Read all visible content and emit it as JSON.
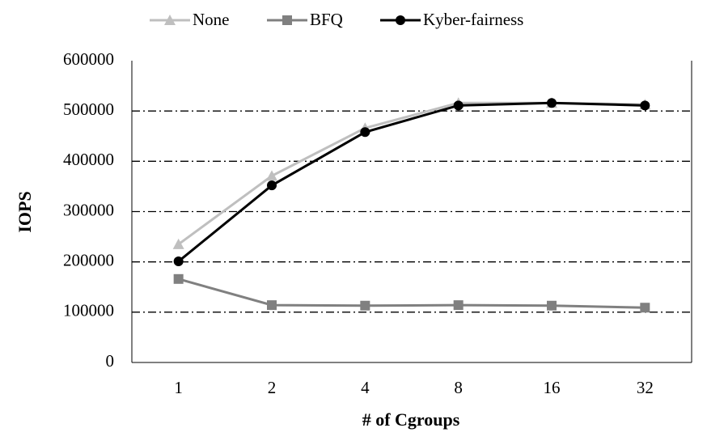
{
  "chart_data": {
    "type": "line",
    "x_label": "# of Cgroups",
    "y_label": "IOPS",
    "categories": [
      "1",
      "2",
      "4",
      "8",
      "16",
      "32"
    ],
    "series": [
      {
        "name": "None",
        "color": "#bfbfbf",
        "marker": "triangle",
        "values": [
          235000,
          371000,
          466000,
          516000,
          516000,
          513000
        ]
      },
      {
        "name": "BFQ",
        "color": "#808080",
        "marker": "square",
        "values": [
          166000,
          114000,
          113000,
          114000,
          113000,
          109000
        ]
      },
      {
        "name": "Kyber-fairness",
        "color": "#000000",
        "marker": "circle",
        "values": [
          201000,
          352000,
          458000,
          511000,
          516000,
          511000
        ]
      }
    ],
    "ylim": [
      0,
      600000
    ],
    "yticks": [
      0,
      100000,
      200000,
      300000,
      400000,
      500000,
      600000
    ],
    "grid": true,
    "legend": "top"
  }
}
